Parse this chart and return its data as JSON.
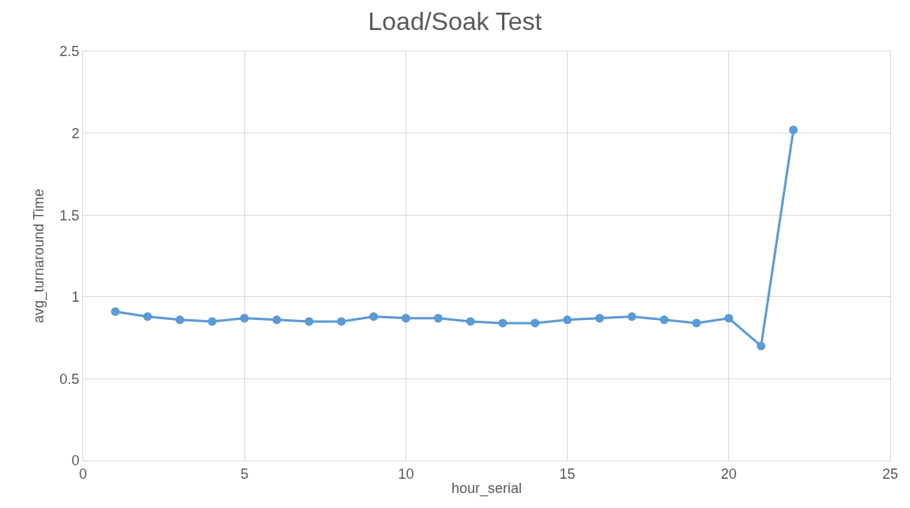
{
  "chart_data": {
    "type": "line",
    "title": "Load/Soak Test",
    "xlabel": "hour_serial",
    "ylabel": "avg_turnaround Time",
    "x": [
      1,
      2,
      3,
      4,
      5,
      6,
      7,
      8,
      9,
      10,
      11,
      12,
      13,
      14,
      15,
      16,
      17,
      18,
      19,
      20,
      21,
      22
    ],
    "series": [
      {
        "color": "#5b9bd5",
        "values": [
          0.91,
          0.88,
          0.86,
          0.85,
          0.87,
          0.86,
          0.85,
          0.85,
          0.88,
          0.87,
          0.87,
          0.85,
          0.84,
          0.84,
          0.86,
          0.87,
          0.88,
          0.86,
          0.84,
          0.87,
          0.7,
          2.02
        ]
      }
    ],
    "xlim": [
      0,
      25
    ],
    "xticks": [
      0,
      5,
      10,
      15,
      20,
      25
    ],
    "ylim": [
      0,
      2.5
    ],
    "yticks": [
      0,
      0.5,
      1,
      1.5,
      2,
      2.5
    ],
    "grid": true,
    "marker": "circle",
    "line_style": "solid",
    "legend": false
  }
}
